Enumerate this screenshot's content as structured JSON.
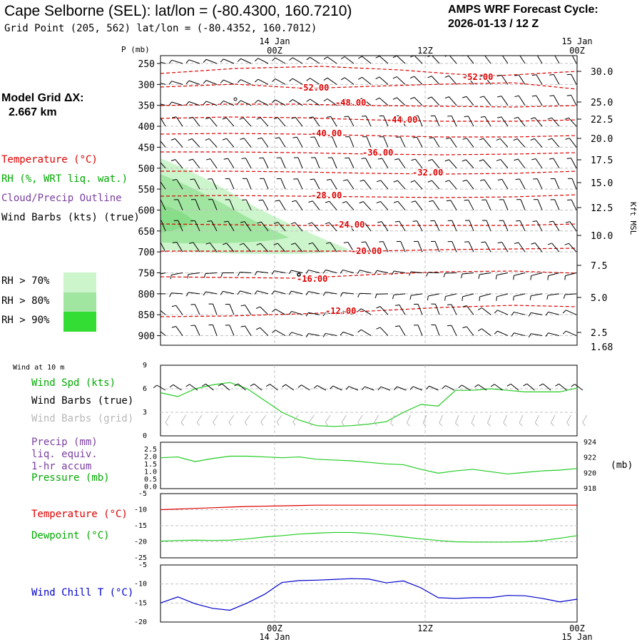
{
  "header": {
    "station_title": "Cape Selborne (SEL):  lat/lon = (-80.4300, 160.7210)",
    "grid_point": "Grid Point (205, 562) lat/lon = (-80.4352, 160.7012)",
    "cycle_line1": "AMPS WRF Forecast Cycle:",
    "cycle_line2": "2026-01-13 / 12  Z"
  },
  "model": {
    "grid_label": "Model Grid ΔX:",
    "grid_value": "2.667 km"
  },
  "legend": {
    "temperature": "Temperature (°C)",
    "rh": "RH (%, WRT liq. wat.)",
    "cloud": "Cloud/Precip Outline",
    "wind": "Wind Barbs (kts) (true)",
    "rh70": "RH > 70%",
    "rh80": "RH > 80%",
    "rh90": "RH > 90%"
  },
  "colors": {
    "temperature": "#dd0000",
    "rh70": "#ccf5cc",
    "rh80": "#a0e6a0",
    "rh90": "#33dd33",
    "wind_true": "#000000",
    "wind_grid": "#b8b8b8",
    "surface_green": "#22cc22",
    "windchill": "#0000cc"
  },
  "time_axis": {
    "top_dates": [
      "14 Jan",
      "15 Jan"
    ],
    "ticks": [
      "00Z",
      "12Z",
      "00Z"
    ],
    "bottom_dates": [
      "14 Jan",
      "15 Jan"
    ]
  },
  "chart_data": [
    {
      "type": "contour",
      "name": "cross-section",
      "y_axis_title": "P (mb)",
      "pressure_ticks": [
        "250",
        "300",
        "350",
        "400",
        "450",
        "500",
        "550",
        "600",
        "650",
        "700",
        "750",
        "800",
        "850",
        "900"
      ],
      "right_axis_title": "Kft MSL",
      "height_ticks": [
        "30.0",
        "25.0",
        "22.5",
        "20.0",
        "17.5",
        "15.0",
        "12.5",
        "10.0",
        "7.5",
        "5.0",
        "2.5",
        "1.68"
      ],
      "temperature_labels": [
        "-52.00",
        "-52.00",
        "-48.00",
        "-44.00",
        "-40.00",
        "-36.00",
        "-32.00",
        "-28.00",
        "-24.00",
        "-20.00",
        "-16.00",
        "-12.00"
      ]
    },
    {
      "type": "line",
      "name": "wind-10m",
      "header": "Wind at 10 m",
      "labels": [
        "Wind Spd (kts)",
        "Wind Barbs (true)",
        "Wind Barbs (grid)"
      ],
      "yticks": [
        "9",
        "6",
        "3",
        "0"
      ],
      "ylim": [
        0,
        9
      ],
      "x": [
        0,
        1,
        2,
        3,
        4,
        5,
        6,
        7,
        8,
        9,
        10,
        11,
        12,
        13,
        14,
        15,
        16,
        17,
        18,
        19,
        20,
        21,
        22,
        23,
        24
      ],
      "values": [
        5.5,
        5.0,
        6.0,
        6.5,
        6.8,
        6.0,
        4.5,
        3.0,
        2.0,
        1.3,
        1.2,
        1.3,
        1.5,
        1.8,
        3.0,
        4.0,
        3.8,
        5.8,
        5.8,
        6.0,
        5.8,
        5.6,
        5.6,
        5.6,
        6.1
      ]
    },
    {
      "type": "line",
      "name": "precip-pressure",
      "labels": [
        "Precip (mm)",
        "liq. equiv.",
        "1-hr accum",
        "Pressure (mb)"
      ],
      "yticks_left": [
        "2.5",
        "2.0",
        "1.5",
        "1.0",
        "0.5",
        "0.0"
      ],
      "yticks_right": [
        "924",
        "922",
        "920",
        "918"
      ],
      "right_unit": "(mb)",
      "ylim_right": [
        918,
        924
      ],
      "x": [
        0,
        1,
        2,
        3,
        4,
        5,
        6,
        7,
        8,
        9,
        10,
        11,
        12,
        13,
        14,
        15,
        16,
        17,
        18,
        19,
        20,
        21,
        22,
        23,
        24
      ],
      "pressure": [
        922.0,
        922.1,
        921.5,
        921.9,
        922.2,
        922.2,
        922.1,
        922.0,
        922.1,
        921.8,
        921.7,
        921.6,
        921.4,
        921.2,
        921.1,
        920.5,
        920.0,
        920.3,
        920.5,
        920.2,
        919.9,
        920.1,
        920.3,
        920.4,
        920.6
      ]
    },
    {
      "type": "line",
      "name": "temp-dewpoint",
      "labels": [
        "Temperature (°C)",
        "Dewpoint (°C)"
      ],
      "yticks": [
        "-5",
        "-10",
        "-15",
        "-20",
        "-25"
      ],
      "ylim": [
        -25,
        -5
      ],
      "x": [
        0,
        24
      ],
      "temperature": [
        -10.0,
        -9.8,
        -9.6,
        -9.4,
        -9.2,
        -9.0,
        -8.9,
        -8.8,
        -8.7,
        -8.6,
        -8.6,
        -8.6,
        -8.6,
        -8.6,
        -8.6,
        -8.6,
        -8.6,
        -8.6,
        -8.6,
        -8.6,
        -8.6,
        -8.6,
        -8.6,
        -8.6,
        -8.6
      ],
      "dewpoint": [
        -19.8,
        -19.6,
        -19.5,
        -19.6,
        -19.5,
        -19.1,
        -18.5,
        -18.1,
        -17.6,
        -17.3,
        -17.1,
        -17.1,
        -17.4,
        -17.9,
        -18.5,
        -19.1,
        -19.6,
        -20.0,
        -20.1,
        -20.1,
        -20.1,
        -20.0,
        -19.6,
        -18.9,
        -18.1
      ]
    },
    {
      "type": "line",
      "name": "windchill",
      "labels": [
        "Wind Chill T (°C)"
      ],
      "yticks": [
        "-5",
        "-10",
        "-15",
        "-20"
      ],
      "ylim": [
        -20,
        -5
      ],
      "x": [
        0,
        1,
        2,
        3,
        4,
        5,
        6,
        7,
        8,
        9,
        10,
        11,
        12,
        13,
        14,
        15,
        16,
        17,
        18,
        19,
        20,
        21,
        22,
        23,
        24
      ],
      "values": [
        -15.0,
        -13.4,
        -15.2,
        -16.4,
        -16.9,
        -15.0,
        -12.7,
        -9.6,
        -9.1,
        -9.0,
        -8.8,
        -8.6,
        -8.7,
        -9.7,
        -9.2,
        -11.0,
        -13.6,
        -13.8,
        -13.6,
        -13.6,
        -13.0,
        -13.1,
        -13.8,
        -14.7,
        -14.0
      ]
    }
  ]
}
